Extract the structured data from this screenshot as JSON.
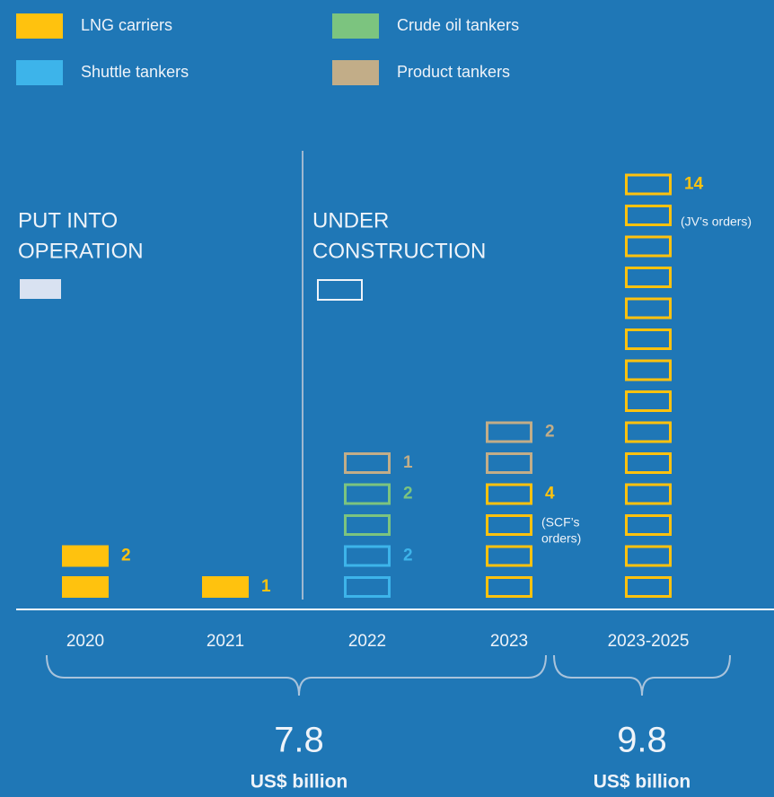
{
  "chart_data": {
    "type": "unit",
    "categories": [
      "2020",
      "2021",
      "2022",
      "2023",
      "2023-2025"
    ],
    "filled": [
      true,
      true,
      false,
      false,
      false
    ],
    "series": [
      {
        "name": "LNG carriers",
        "color": "#ffc20e",
        "values": [
          2,
          1,
          null,
          4,
          14
        ],
        "notes": [
          null,
          null,
          null,
          "(SCF’s orders)",
          "(JV’s orders)"
        ]
      },
      {
        "name": "Shuttle tankers",
        "color": "#3db4ea",
        "values": [
          null,
          null,
          2,
          null,
          null
        ]
      },
      {
        "name": "Crude oil tankers",
        "color": "#7cc47f",
        "values": [
          null,
          null,
          2,
          null,
          null
        ]
      },
      {
        "name": "Product tankers",
        "color": "#c2ad88",
        "values": [
          null,
          null,
          1,
          2,
          null
        ]
      }
    ],
    "groups": [
      {
        "label_lines": [
          "PUT INTO",
          "OPERATION"
        ]
      },
      {
        "label_lines": [
          "UNDER",
          "CONSTRUCTION"
        ]
      }
    ],
    "totals": [
      {
        "value": 7.8,
        "unit": "US$ billion"
      },
      {
        "value": 9.8,
        "unit": "US$ billion"
      }
    ]
  }
}
